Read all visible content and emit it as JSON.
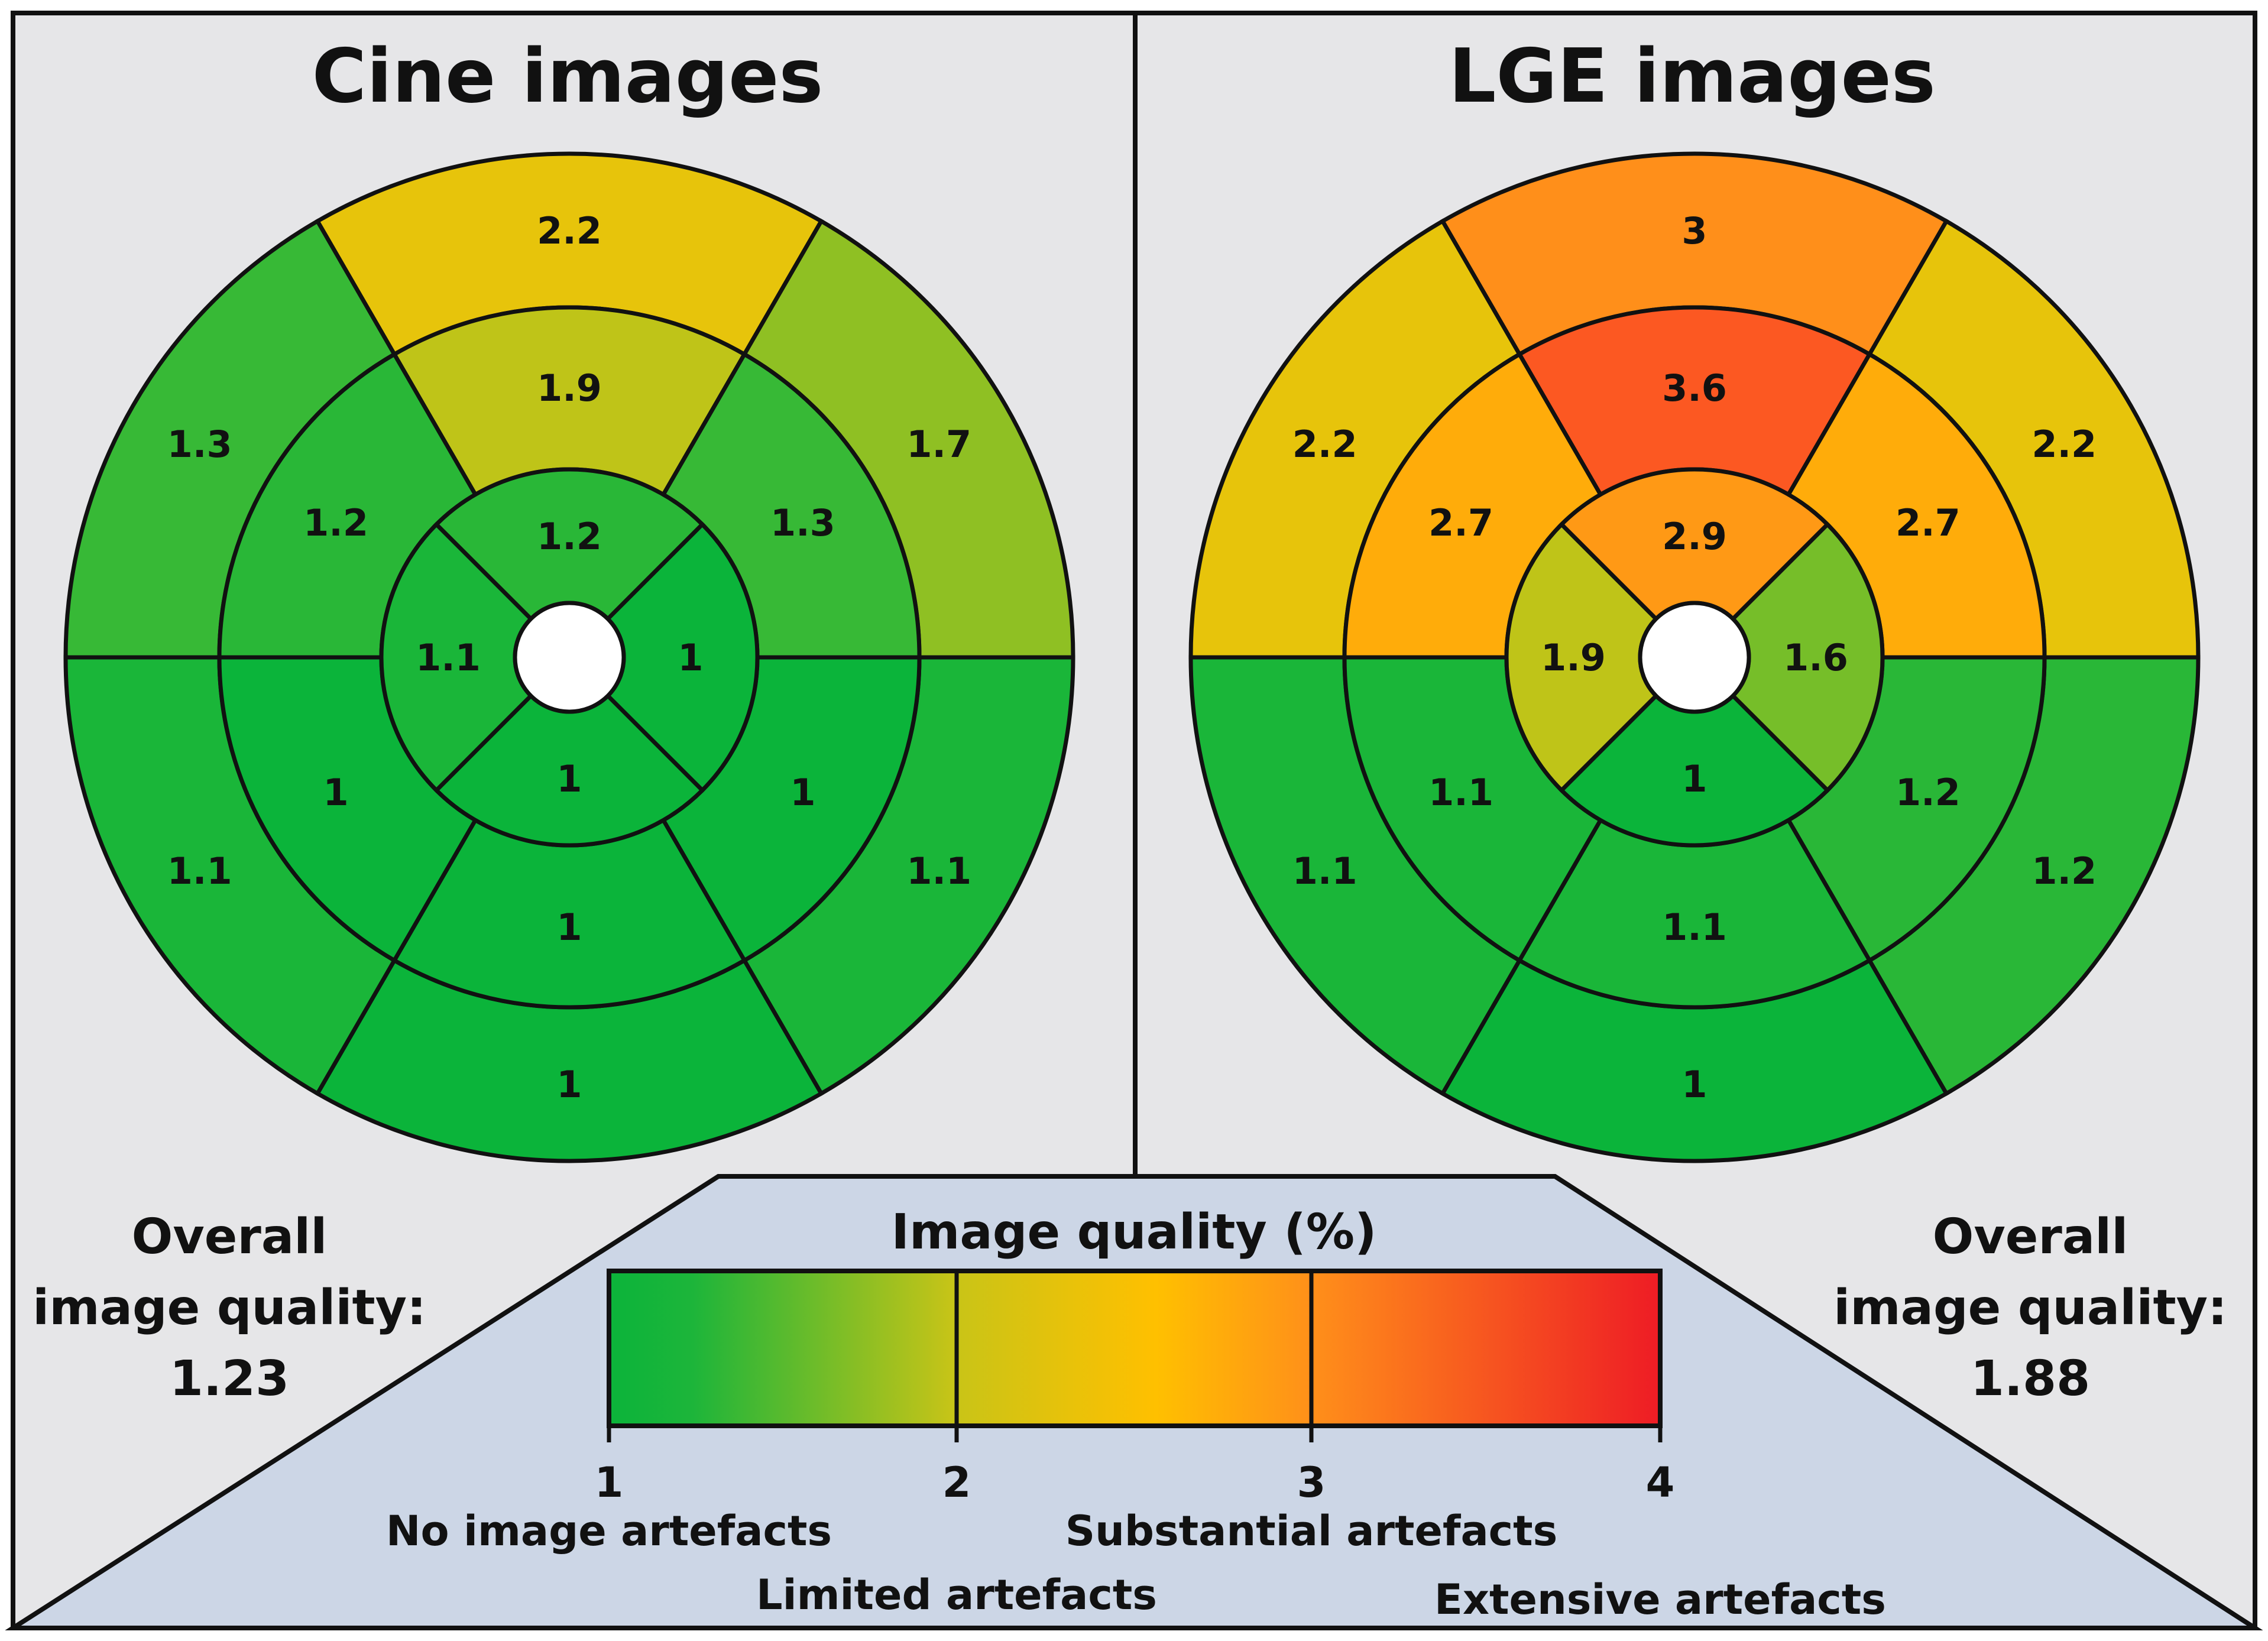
{
  "panels": [
    {
      "title": "Cine images",
      "overall_label_lines": [
        "Overall",
        "image quality:"
      ],
      "overall_value": "1.23",
      "basal": [
        "2.2",
        "1.7",
        "1.1",
        "1",
        "1.1",
        "1.3"
      ],
      "mid": [
        "1.9",
        "1.3",
        "1",
        "1",
        "1",
        "1.2"
      ],
      "apical": [
        "1.2",
        "1",
        "1",
        "1.1"
      ]
    },
    {
      "title": "LGE images",
      "overall_label_lines": [
        "Overall",
        "image quality:"
      ],
      "overall_value": "1.88",
      "basal": [
        "3",
        "2.2",
        "1.2",
        "1",
        "1.1",
        "2.2"
      ],
      "mid": [
        "3.6",
        "2.7",
        "1.2",
        "1.1",
        "1.1",
        "2.7"
      ],
      "apical": [
        "2.9",
        "1.6",
        "1",
        "1.9"
      ]
    }
  ],
  "legend": {
    "title": "Image quality (%)",
    "ticks": [
      "1",
      "2",
      "3",
      "4"
    ],
    "categories": [
      "No image artefacts",
      "Limited artefacts",
      "Substantial artefacts",
      "Extensive artefacts"
    ],
    "colors": {
      "green": "#0bb43a",
      "yellow": "#ffc000",
      "orange": "#ff8a1e",
      "red": "#ee1c25",
      "panel_bg": "#e6e6e8",
      "legend_bg": "#ccd6e6"
    }
  }
}
